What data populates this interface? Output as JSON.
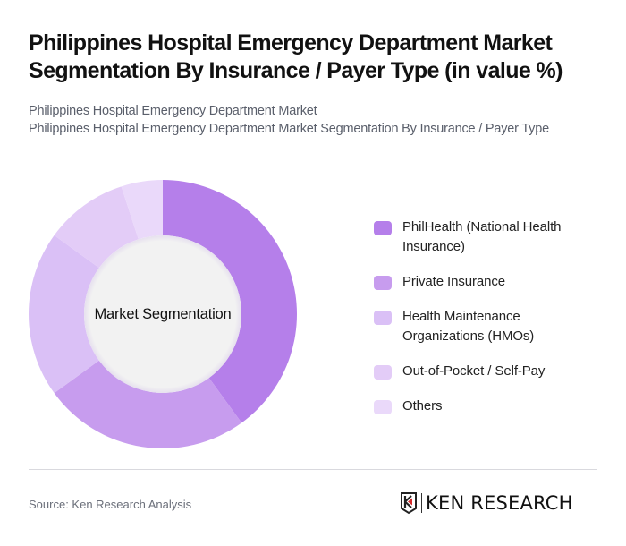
{
  "header": {
    "title": "Philippines Hospital Emergency Department Market Segmentation By Insurance / Payer Type (in value %)",
    "subtitle_line1": "Philippines Hospital Emergency Department Market",
    "subtitle_line2": "Philippines Hospital Emergency Department Market Segmentation By Insurance / Payer Type"
  },
  "chart": {
    "center_label": "Market Segmentation"
  },
  "legend": {
    "items": [
      {
        "label": "PhilHealth (National Health Insurance)",
        "color": "#B57FEA"
      },
      {
        "label": "Private Insurance",
        "color": "#C79CEE"
      },
      {
        "label": "Health Maintenance Organizations (HMOs)",
        "color": "#DAC0F6"
      },
      {
        "label": "Out-of-Pocket / Self-Pay",
        "color": "#E3CCF7"
      },
      {
        "label": "Others",
        "color": "#EAD9FA"
      }
    ]
  },
  "footer": {
    "source": "Source: Ken Research Analysis",
    "logo_text": "KEN RESEARCH"
  },
  "chart_data": {
    "type": "pie",
    "variant": "donut",
    "title": "Philippines Hospital Emergency Department Market Segmentation By Insurance / Payer Type (in value %)",
    "center_label": "Market Segmentation",
    "categories": [
      "PhilHealth (National Health Insurance)",
      "Private Insurance",
      "Health Maintenance Organizations (HMOs)",
      "Out-of-Pocket / Self-Pay",
      "Others"
    ],
    "values": [
      40,
      25,
      20,
      10,
      5
    ],
    "colors": [
      "#B57FEA",
      "#C79CEE",
      "#DAC0F6",
      "#E3CCF7",
      "#EAD9FA"
    ],
    "start_angle": "12 o'clock, clockwise",
    "legend_position": "right",
    "data_labels": false
  }
}
